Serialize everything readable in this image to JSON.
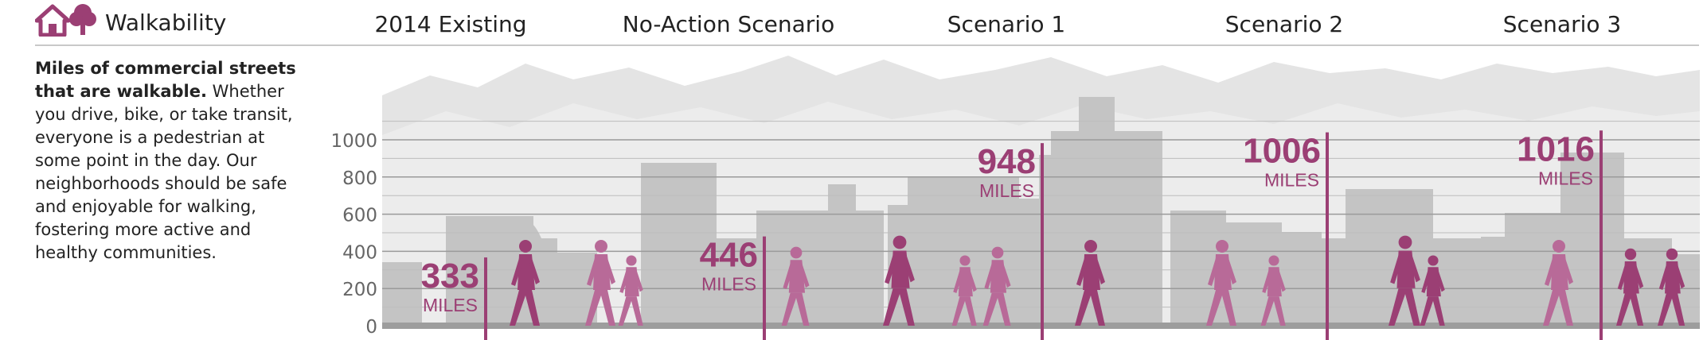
{
  "section": {
    "title": "Walkability",
    "icon": "house-tree-icon"
  },
  "columns": [
    "2014 Existing",
    "No-Action Scenario",
    "Scenario 1",
    "Scenario 2",
    "Scenario 3"
  ],
  "description": {
    "bold": "Miles of commercial streets that are walkable.",
    "body": " Whether you drive, bike, or take transit, everyone is a pedestrian at some point in the day. Our neighborhoods should be safe and enjoyable for walking, fostering more active and healthy communities."
  },
  "colors": {
    "accent": "#9b3f74",
    "figure_dark": "#9b3f74",
    "figure_light": "#b86a98",
    "building": "#c4c4c4",
    "mountain": "#e4e4e4",
    "gridline": "#9a9a9a",
    "tick_label": "#666666"
  },
  "chart_data": {
    "type": "bar",
    "categories": [
      "2014 Existing",
      "No-Action Scenario",
      "Scenario 1",
      "Scenario 2",
      "Scenario 3"
    ],
    "values": [
      333,
      446,
      948,
      1006,
      1016
    ],
    "unit_label": "MILES",
    "ylim": [
      0,
      1000
    ],
    "yticks": [
      0,
      200,
      400,
      600,
      800,
      1000
    ],
    "grid": true
  }
}
